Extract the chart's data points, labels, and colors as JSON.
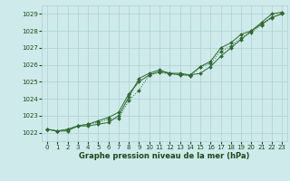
{
  "x": [
    0,
    1,
    2,
    3,
    4,
    5,
    6,
    7,
    8,
    9,
    10,
    11,
    12,
    13,
    14,
    15,
    16,
    17,
    18,
    19,
    20,
    21,
    22,
    23
  ],
  "line1": [
    1022.2,
    1022.1,
    1022.1,
    1022.4,
    1022.4,
    1022.5,
    1022.6,
    1023.0,
    1024.1,
    1025.2,
    1025.5,
    1025.7,
    1025.5,
    1025.5,
    1025.4,
    1025.9,
    1026.2,
    1027.0,
    1027.3,
    1027.8,
    1028.0,
    1028.4,
    1028.8,
    1029.0
  ],
  "line2": [
    1022.2,
    1022.1,
    1022.2,
    1022.4,
    1022.5,
    1022.7,
    1022.9,
    1023.2,
    1024.3,
    1025.0,
    1025.4,
    1025.6,
    1025.5,
    1025.4,
    1025.4,
    1025.5,
    1025.9,
    1026.5,
    1027.0,
    1027.5,
    1028.0,
    1028.5,
    1029.0,
    1029.1
  ],
  "line3": [
    1022.2,
    1022.1,
    1022.2,
    1022.4,
    1022.5,
    1022.6,
    1022.8,
    1022.85,
    1023.9,
    1024.5,
    1025.4,
    1025.55,
    1025.45,
    1025.45,
    1025.35,
    1025.85,
    1026.1,
    1026.8,
    1027.1,
    1027.6,
    1027.9,
    1028.35,
    1028.75,
    1029.05
  ],
  "line_color": "#2d6a2d",
  "marker": "D",
  "marker_size": 2.0,
  "bg_color": "#ceeaeb",
  "grid_color": "#afd0d0",
  "xlabel": "Graphe pression niveau de la mer (hPa)",
  "xlabel_color": "#1a4a1a",
  "tick_color": "#1a4a1a",
  "ylim": [
    1021.5,
    1029.5
  ],
  "xlim": [
    -0.5,
    23.5
  ],
  "yticks": [
    1022,
    1023,
    1024,
    1025,
    1026,
    1027,
    1028,
    1029
  ],
  "xticks": [
    0,
    1,
    2,
    3,
    4,
    5,
    6,
    7,
    8,
    9,
    10,
    11,
    12,
    13,
    14,
    15,
    16,
    17,
    18,
    19,
    20,
    21,
    22,
    23
  ],
  "tick_fontsize": 5.0,
  "xlabel_fontsize": 6.0
}
